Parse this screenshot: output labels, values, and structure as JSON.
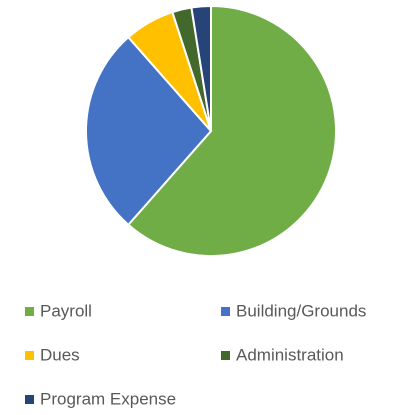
{
  "chart_data": {
    "type": "pie",
    "categories": [
      "Payroll",
      "Building/Grounds",
      "Dues",
      "Administration",
      "Program Expense"
    ],
    "values": [
      61.5,
      27,
      6.5,
      2.5,
      2.5
    ],
    "colors": [
      "#70ad47",
      "#4472c4",
      "#ffc000",
      "#43682b",
      "#264478"
    ],
    "legend": "bottom"
  }
}
